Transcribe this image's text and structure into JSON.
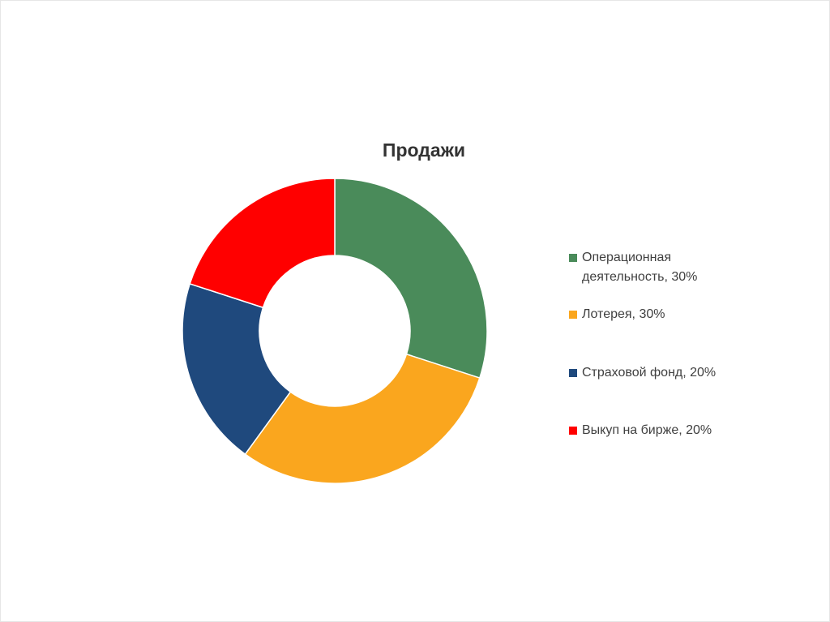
{
  "chart_data": {
    "type": "donut",
    "title": "Продажи",
    "categories": [
      "Операционная деятельность, 30%",
      "Лотерея, 30%",
      "Страховой фонд, 20%",
      "Выкуп на бирже, 20%"
    ],
    "values": [
      30,
      30,
      20,
      20
    ],
    "colors": [
      "#4a8b5a",
      "#faa61e",
      "#1f497d",
      "#ff0000"
    ],
    "legend": "right"
  }
}
